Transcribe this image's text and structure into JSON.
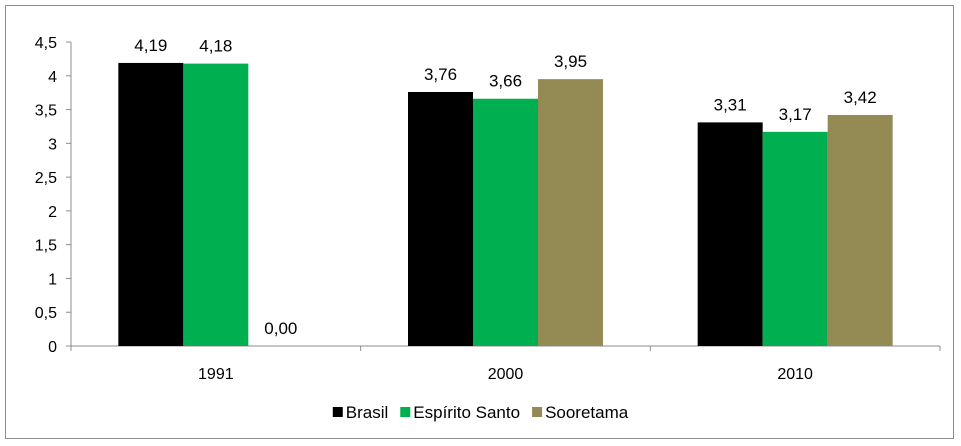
{
  "chart_data": {
    "type": "bar",
    "categories": [
      "1991",
      "2000",
      "2010"
    ],
    "series": [
      {
        "name": "Brasil",
        "color": "#000000",
        "values": [
          4.19,
          3.76,
          3.31
        ],
        "labels": [
          "4,19",
          "3,76",
          "3,31"
        ]
      },
      {
        "name": "Espírito Santo",
        "color": "#00b050",
        "values": [
          4.18,
          3.66,
          3.17
        ],
        "labels": [
          "4,18",
          "3,66",
          "3,17"
        ]
      },
      {
        "name": "Sooretama",
        "color": "#948a54",
        "values": [
          0.0,
          3.95,
          3.42
        ],
        "labels": [
          "0,00",
          "3,95",
          "3,42"
        ]
      }
    ],
    "ylim": [
      0,
      4.5
    ],
    "yticks": [
      0,
      0.5,
      1,
      1.5,
      2,
      2.5,
      3,
      3.5,
      4,
      4.5
    ],
    "ytick_labels": [
      "0",
      "0,5",
      "1",
      "1,5",
      "2",
      "2,5",
      "3",
      "3,5",
      "4",
      "4,5"
    ],
    "title": "",
    "xlabel": "",
    "ylabel": "",
    "grid": false,
    "legend_position": "bottom"
  }
}
